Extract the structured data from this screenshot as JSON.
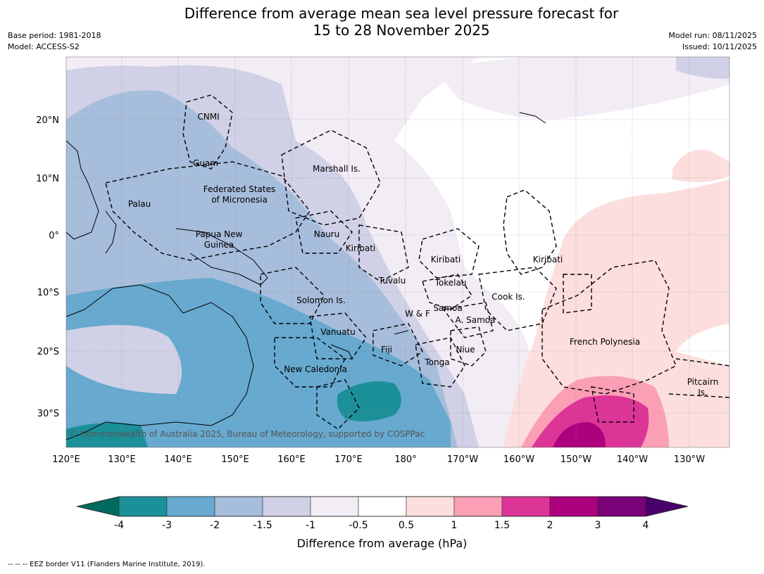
{
  "header": {
    "title_line1": "Difference from average mean sea level pressure forecast for",
    "title_line2": "15 to 28 November 2025",
    "base_period": "Base period: 1981-2018",
    "model": "Model: ACCESS-S2",
    "model_run": "Model run: 08/11/2025",
    "issued": "Issued: 10/11/2025"
  },
  "map": {
    "lon_ticks": [
      "120°E",
      "130°E",
      "140°E",
      "150°E",
      "160°E",
      "170°E",
      "180°",
      "170°W",
      "160°W",
      "150°W",
      "140°W",
      "130°W"
    ],
    "lat_ticks": [
      "20°N",
      "10°N",
      "0°",
      "10°S",
      "20°S",
      "30°S"
    ],
    "copyright": "© Commonwealth of Australia 2025, Bureau of Meteorology, supported by COSPPac",
    "places": [
      "CNMI",
      "Guam",
      "Marshall Is.",
      "Federated States",
      "of Micronesia",
      "Palau",
      "Papua New",
      "Guinea",
      "Nauru",
      "Kiribati",
      "Kiribati",
      "Kiribati",
      "Tuvalu",
      "Tokelau",
      "Cook Is.",
      "Solomon Is.",
      "Samoa",
      "W & F",
      "A. Samoa",
      "Vanuatu",
      "Fiji",
      "Niue",
      "Tonga",
      "New Caledonia",
      "French Polynesia",
      "Pitcairn",
      "Is."
    ]
  },
  "colorbar": {
    "ticks": [
      "-4",
      "-3",
      "-2",
      "-1.5",
      "-1",
      "-0.5",
      "0.5",
      "1",
      "1.5",
      "2",
      "3",
      "4"
    ],
    "colors": [
      "#006a5e",
      "#1c9099",
      "#67a9cf",
      "#a6bddb",
      "#d0d1e6",
      "#f2ecf5",
      "#ffffff",
      "#fddede",
      "#fa9fb5",
      "#dd3497",
      "#ae017e",
      "#7a0177",
      "#49006a"
    ],
    "label": "Difference from average (hPa)"
  },
  "footnote": "--  --  -- EEZ border V11 (Flanders Marine Institute, 2019)."
}
